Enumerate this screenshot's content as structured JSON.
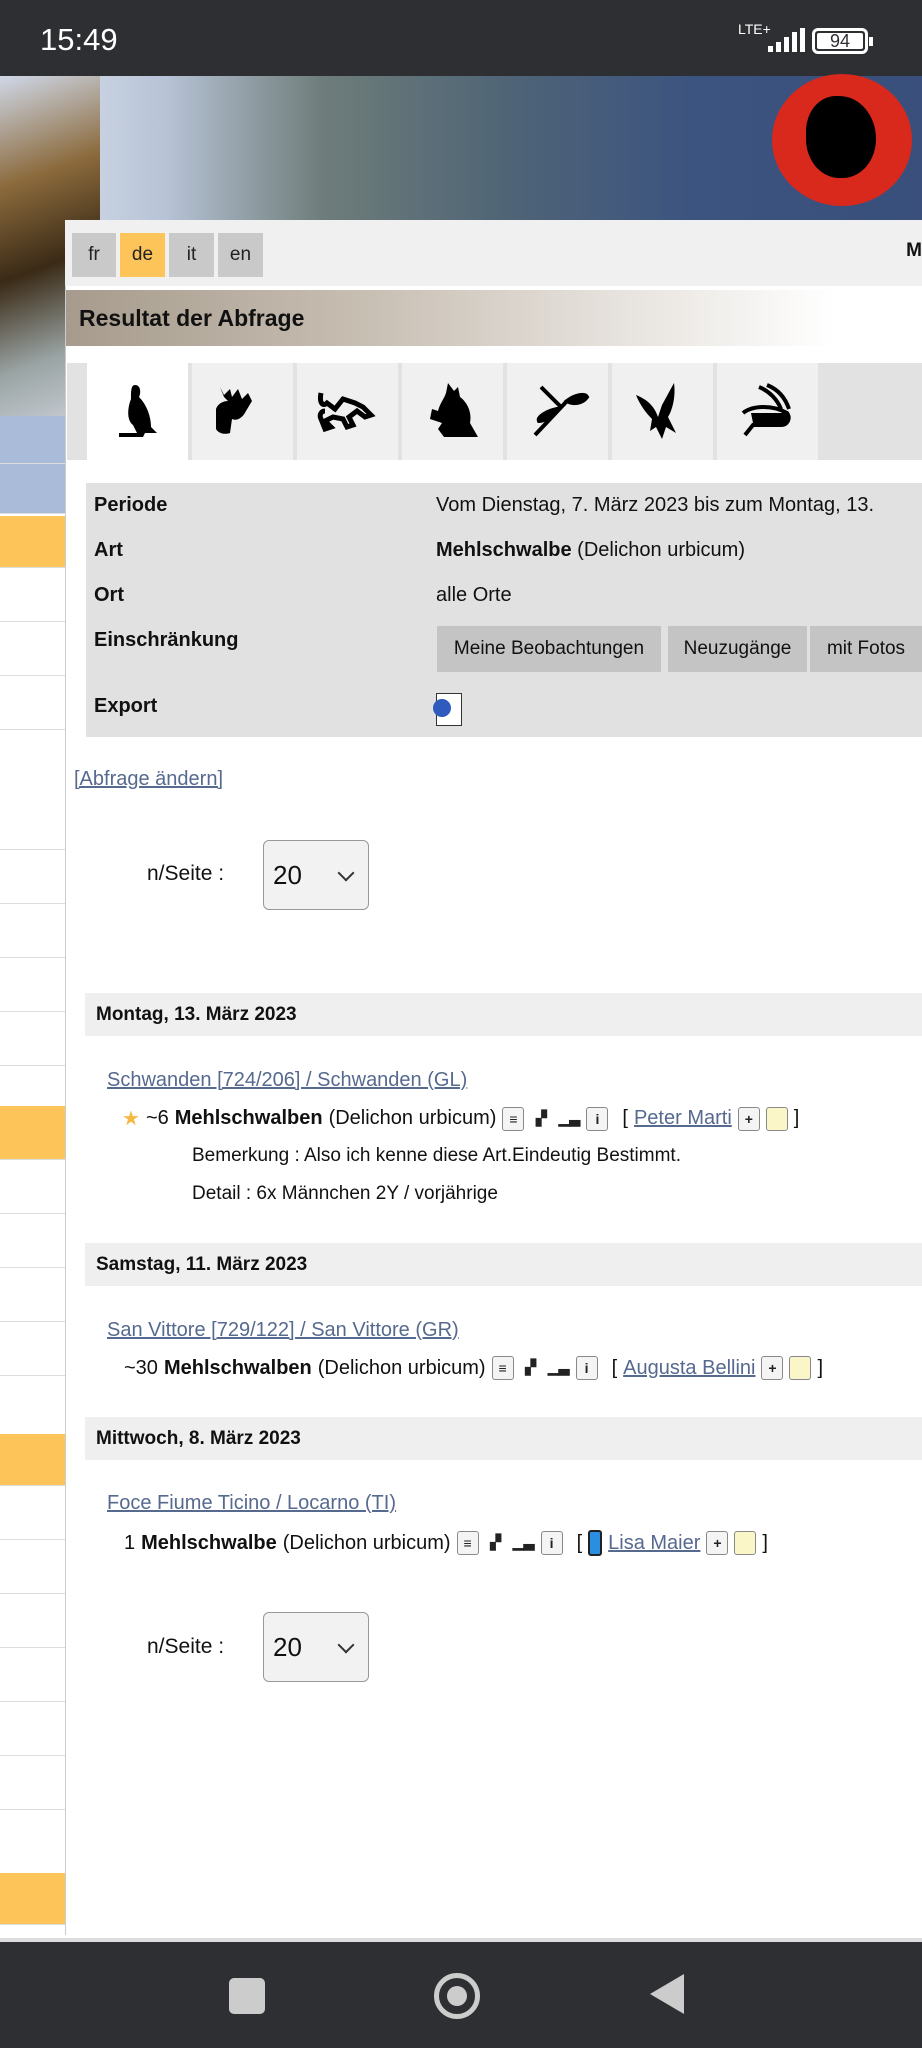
{
  "status": {
    "time": "15:49",
    "network": "LTE+",
    "battery": "94"
  },
  "colors": {
    "accent": "#fcc459",
    "link": "#56698f",
    "logo": "#d9281c"
  },
  "languages": [
    {
      "code": "fr"
    },
    {
      "code": "de",
      "active": true
    },
    {
      "code": "it"
    },
    {
      "code": "en"
    }
  ],
  "langbar_cut_text": "M",
  "page_title": "Resultat der Abfrage",
  "tabs": [
    "bird-icon",
    "deer-icon",
    "lizard-icon",
    "frog-icon",
    "dragonfly-icon",
    "butterfly-icon",
    "grasshopper-icon"
  ],
  "query": {
    "rows": [
      {
        "label": "Periode",
        "value": "Vom Dienstag, 7. März 2023 bis zum Montag, 13."
      },
      {
        "label": "Art",
        "value_bold": "Mehlschwalbe",
        "value": "(Delichon urbicum)"
      },
      {
        "label": "Ort",
        "value": "alle Orte"
      },
      {
        "label": "Einschränkung"
      },
      {
        "label": "Export"
      }
    ],
    "filters": [
      "Meine Beobachtungen",
      "Neuzugänge",
      "mit Fotos"
    ]
  },
  "change_link": "[Abfrage ändern]",
  "pagination": {
    "label": "n/Seite :",
    "value": "20"
  },
  "days": [
    {
      "date": "Montag, 13. März 2023",
      "location": "Schwanden [724/206] / Schwanden (GL)",
      "obs": {
        "count": "~6",
        "species": "Mehlschwalben",
        "latin": "(Delichon urbicum)",
        "observer": "Peter Marti",
        "starred": true,
        "remark": "Bemerkung : Also ich kenne diese Art.Eindeutig Bestimmt.",
        "detail": "Detail : 6x Männchen 2Y / vorjährige"
      }
    },
    {
      "date": "Samstag, 11. März 2023",
      "location": "San Vittore [729/122] / San Vittore (GR)",
      "obs": {
        "count": "~30",
        "species": "Mehlschwalben",
        "latin": "(Delichon urbicum)",
        "observer": "Augusta Bellini"
      }
    },
    {
      "date": "Mittwoch, 8. März 2023",
      "location": "Foce Fiume Ticino / Locarno (TI)",
      "obs": {
        "count": "1",
        "species": "Mehlschwalbe",
        "latin": "(Delichon urbicum)",
        "observer": "Lisa Maier",
        "mobile": true
      }
    }
  ]
}
